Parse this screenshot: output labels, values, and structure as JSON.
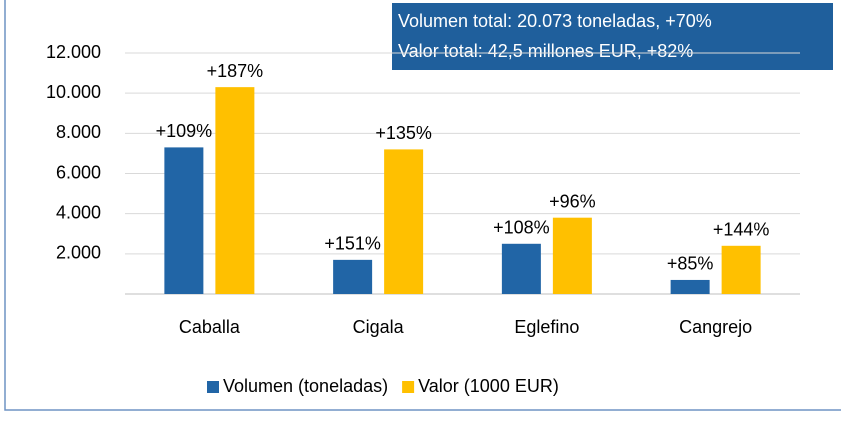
{
  "chart_data": {
    "type": "bar",
    "annotation": [
      "Volumen total: 20.073 toneladas,  +70%",
      "Valor total: 42,5 millones EUR, +82%"
    ],
    "categories": [
      "Caballa",
      "Cigala",
      "Eglefino",
      "Cangrejo"
    ],
    "series": [
      {
        "name": "Volumen (toneladas)",
        "color": "#2165a6",
        "values": [
          7300,
          1700,
          2500,
          700
        ],
        "labels": [
          "+109%",
          "+151%",
          "+108%",
          "+85%"
        ]
      },
      {
        "name": "Valor (1000 EUR)",
        "color": "#ffc000",
        "values": [
          10300,
          7200,
          3800,
          2400
        ],
        "labels": [
          "+187%",
          "+135%",
          "+96%",
          "+144%"
        ]
      }
    ],
    "ylim": [
      0,
      12000
    ],
    "yticks": [
      {
        "value": 2000,
        "label": "2.000"
      },
      {
        "value": 4000,
        "label": "4.000"
      },
      {
        "value": 6000,
        "label": "6.000"
      },
      {
        "value": 8000,
        "label": "8.000"
      },
      {
        "value": 10000,
        "label": "10.000"
      },
      {
        "value": 12000,
        "label": "12.000"
      }
    ],
    "grid": true,
    "legend": "bottom"
  }
}
